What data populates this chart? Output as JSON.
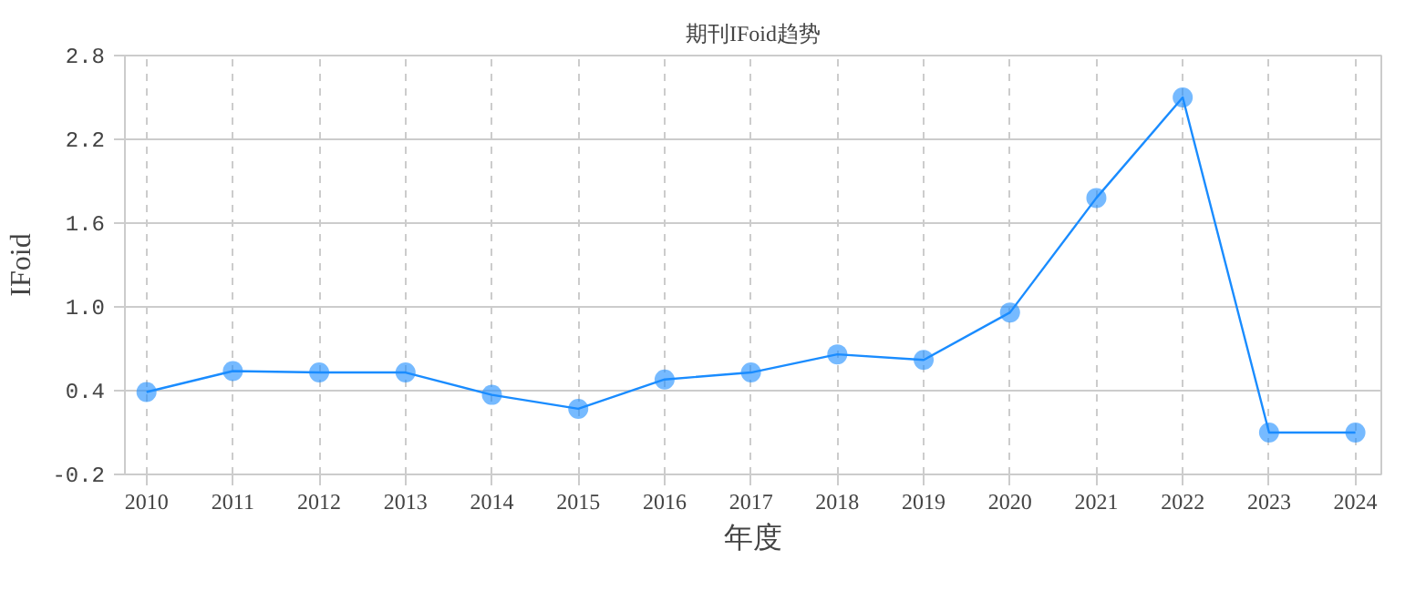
{
  "chart_data": {
    "type": "line",
    "title": "期刊IFoid趋势",
    "xlabel": "年度",
    "ylabel": "IFoid",
    "categories": [
      "2010",
      "2011",
      "2012",
      "2013",
      "2014",
      "2015",
      "2016",
      "2017",
      "2018",
      "2019",
      "2020",
      "2021",
      "2022",
      "2023",
      "2024"
    ],
    "series": [
      {
        "color": "#1a8cff",
        "values": [
          0.39,
          0.54,
          0.53,
          0.53,
          0.37,
          0.27,
          0.48,
          0.53,
          0.66,
          0.62,
          0.96,
          1.78,
          2.5,
          0.1,
          0.1
        ]
      }
    ],
    "ylim": [
      -0.2,
      2.8
    ],
    "yticks": [
      -0.2,
      0.4,
      {
        "value": 1,
        "label": "1.0"
      },
      1.6,
      2.2,
      2.8
    ],
    "grid": true,
    "marker": "circle",
    "line_style": "solid"
  }
}
